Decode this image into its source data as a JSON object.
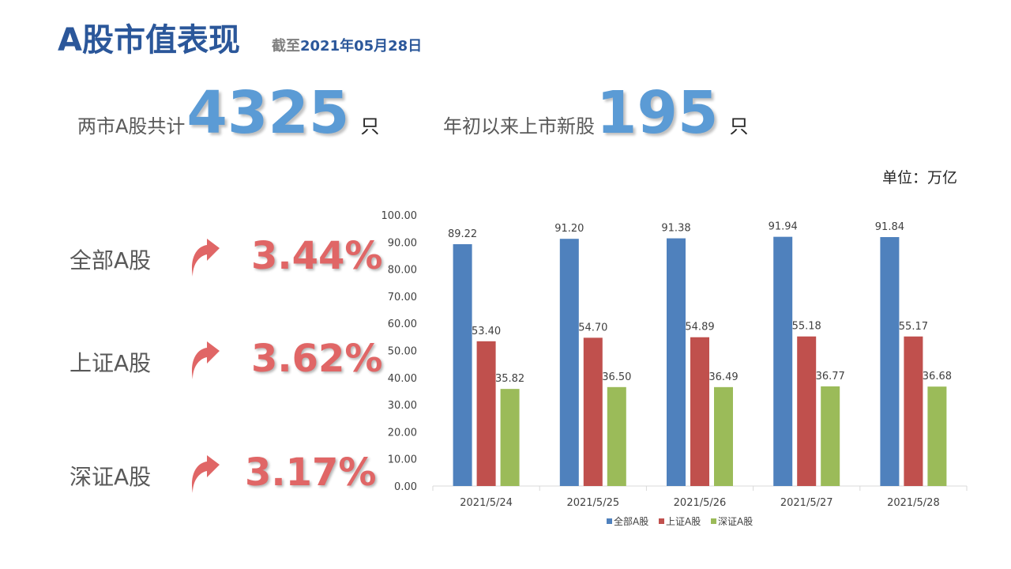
{
  "header": {
    "title": "A股市值表现",
    "asof_lead": "截至",
    "asof_date": "2021年05月28日"
  },
  "stats": [
    {
      "label": "两市A股共计",
      "value": "4325",
      "unit": "只"
    },
    {
      "label": "年初以来上市新股",
      "value": "195",
      "unit": "只"
    }
  ],
  "unit_label": "单位：万亿",
  "changes": [
    {
      "name": "全部A股",
      "pct": "3.44%",
      "direction": "up"
    },
    {
      "name": "上证A股",
      "pct": "3.62%",
      "direction": "up"
    },
    {
      "name": "深证A股",
      "pct": "3.17%",
      "direction": "up"
    }
  ],
  "colors": {
    "title": "#2b579a",
    "stat_number": "#5b9bd5",
    "arrow": "#e06666",
    "pct": "#e06666",
    "series": [
      "#4f81bd",
      "#c0504d",
      "#9bbb59"
    ]
  },
  "chart_data": {
    "type": "bar",
    "categories": [
      "2021/5/24",
      "2021/5/25",
      "2021/5/26",
      "2021/5/27",
      "2021/5/28"
    ],
    "series": [
      {
        "name": "全部A股",
        "values": [
          89.22,
          91.2,
          91.38,
          91.94,
          91.84
        ],
        "labels": [
          "89.22",
          "91.20",
          "91.38",
          "91.94",
          "91.84"
        ]
      },
      {
        "name": "上证A股",
        "values": [
          53.4,
          54.7,
          54.89,
          55.18,
          55.17
        ],
        "labels": [
          "53.40",
          "54.70",
          "54.89",
          "55.18",
          "55.17"
        ]
      },
      {
        "name": "深证A股",
        "values": [
          35.82,
          36.5,
          36.49,
          36.77,
          36.68
        ],
        "labels": [
          "35.82",
          "36.50",
          "36.49",
          "36.77",
          "36.68"
        ]
      }
    ],
    "ylim": [
      0,
      100
    ],
    "yticks": [
      "0.00",
      "10.00",
      "20.00",
      "30.00",
      "40.00",
      "50.00",
      "60.00",
      "70.00",
      "80.00",
      "90.00",
      "100.00"
    ],
    "grid": false,
    "legend": "bottom",
    "xlabel": "",
    "ylabel": ""
  }
}
